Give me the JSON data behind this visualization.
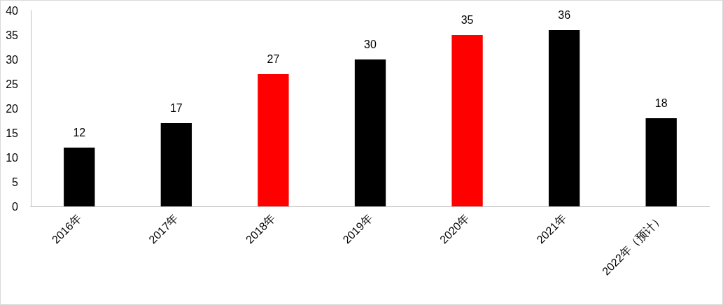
{
  "chart_data": {
    "type": "bar",
    "categories": [
      "2016年",
      "2017年",
      "2018年",
      "2019年",
      "2020年",
      "2021年",
      "2022年（预计）"
    ],
    "values": [
      12,
      17,
      27,
      30,
      35,
      36,
      18
    ],
    "colors": [
      "#000000",
      "#000000",
      "#ff0000",
      "#000000",
      "#ff0000",
      "#000000",
      "#000000"
    ],
    "ylim": [
      0,
      40
    ],
    "yticks": [
      0,
      5,
      10,
      15,
      20,
      25,
      30,
      35,
      40
    ],
    "grid": false,
    "data_labels": true
  }
}
